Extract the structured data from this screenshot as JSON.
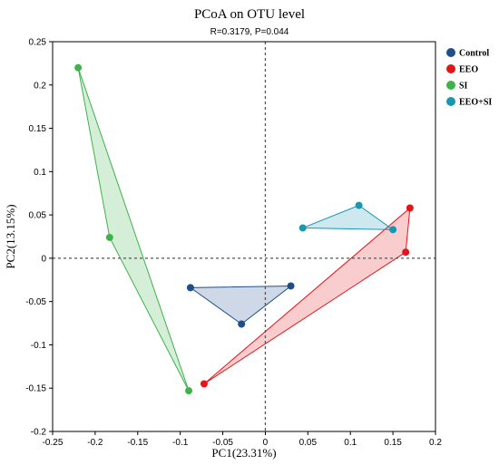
{
  "chart_data": {
    "type": "scatter",
    "title": "PCoA on OTU level",
    "subtitle": "R=0.3179, P=0.044",
    "xlabel": "PC1(23.31%)",
    "ylabel": "PC2(13.15%)",
    "xlim": [
      -0.25,
      0.2
    ],
    "ylim": [
      -0.2,
      0.25
    ],
    "xticks": [
      -0.25,
      -0.2,
      -0.15,
      -0.1,
      -0.05,
      0,
      0.05,
      0.1,
      0.15,
      0.2
    ],
    "yticks": [
      -0.2,
      -0.15,
      -0.1,
      -0.05,
      0,
      0.05,
      0.1,
      0.15,
      0.2,
      0.25
    ],
    "xtick_labels": [
      "-0.25",
      "-0.2",
      "-0.15",
      "-0.1",
      "-0.05",
      "0",
      "0.05",
      "0.1",
      "0.15",
      "0.2"
    ],
    "ytick_labels": [
      "-0.2",
      "-0.15",
      "-0.1",
      "-0.05",
      "0",
      "0.05",
      "0.1",
      "0.15",
      "0.2",
      "0.25"
    ],
    "legend_position": "top-right",
    "reference_lines": "dashed lines at x=0 and y=0",
    "series": [
      {
        "name": "Control",
        "color": "#1f4e8c",
        "points": [
          [
            -0.088,
            -0.034
          ],
          [
            0.03,
            -0.032
          ],
          [
            -0.028,
            -0.076
          ]
        ]
      },
      {
        "name": "EEO",
        "color": "#e3151a",
        "points": [
          [
            -0.072,
            -0.145
          ],
          [
            0.165,
            0.007
          ],
          [
            0.17,
            0.058
          ]
        ]
      },
      {
        "name": "SI",
        "color": "#3db34a",
        "points": [
          [
            -0.22,
            0.22
          ],
          [
            -0.183,
            0.024
          ],
          [
            -0.09,
            -0.153
          ]
        ]
      },
      {
        "name": "EEO+SI",
        "color": "#1a97b0",
        "points": [
          [
            0.044,
            0.035
          ],
          [
            0.11,
            0.061
          ],
          [
            0.15,
            0.033
          ]
        ]
      }
    ]
  }
}
